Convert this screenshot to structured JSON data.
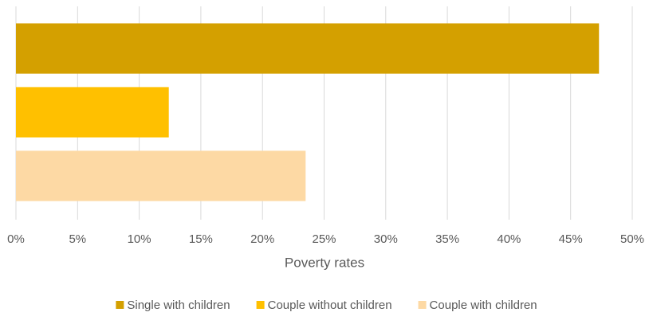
{
  "chart_data": {
    "type": "hbar",
    "x_label": "Poverty rates",
    "categories": [
      null
    ],
    "series": [
      {
        "name": "Single with children",
        "color": "#d4a000",
        "values": [
          47.3
        ]
      },
      {
        "name": "Couple without children",
        "color": "#ffc000",
        "values": [
          12.4
        ]
      },
      {
        "name": "Couple with children",
        "color": "#fdd9a4",
        "values": [
          23.5
        ]
      }
    ],
    "xlim": [
      0,
      50
    ],
    "xticks": [
      {
        "value": 0,
        "label": "0%"
      },
      {
        "value": 5,
        "label": "5%"
      },
      {
        "value": 10,
        "label": "10%"
      },
      {
        "value": 15,
        "label": "15%"
      },
      {
        "value": 20,
        "label": "20%"
      },
      {
        "value": 25,
        "label": "25%"
      },
      {
        "value": 30,
        "label": "30%"
      },
      {
        "value": 35,
        "label": "35%"
      },
      {
        "value": 40,
        "label": "40%"
      },
      {
        "value": 45,
        "label": "45%"
      },
      {
        "value": 50,
        "label": "50%"
      }
    ],
    "grid": true,
    "legend": "bottom"
  }
}
